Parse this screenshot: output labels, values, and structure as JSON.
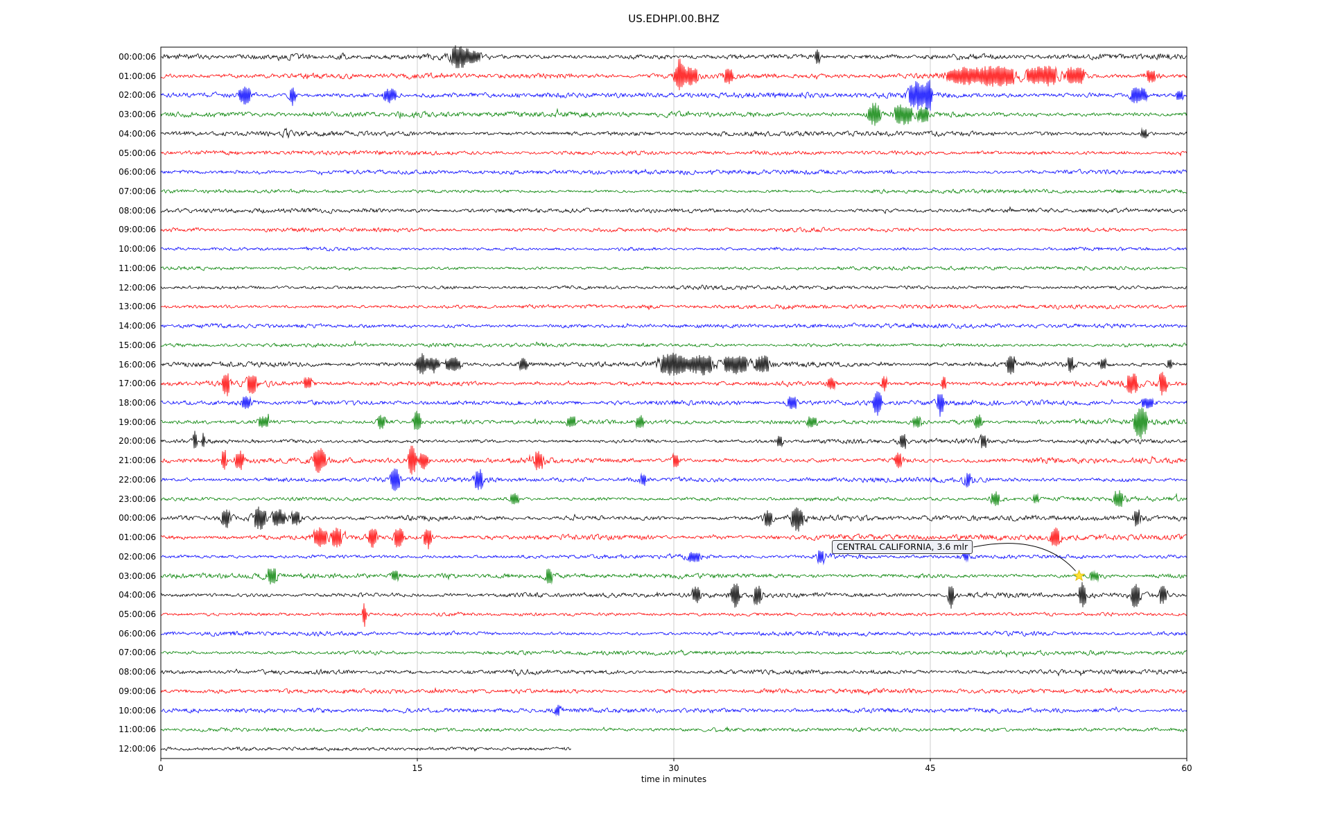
{
  "chart_data": {
    "type": "line",
    "subtype": "seismogram-dayplot",
    "title": "US.EDHPI.00.BHZ",
    "xlabel": "time in minutes",
    "x_range": [
      0,
      60
    ],
    "x_ticks": [
      0,
      15,
      30,
      45,
      60
    ],
    "grid_x_minutes": [
      15,
      30,
      45
    ],
    "colors": {
      "grid": "#c8c8c8",
      "axis": "#000000",
      "marker_fill": "#ffe135",
      "marker_stroke": "#d8b500",
      "annotation_bg": "#eef0f6"
    },
    "annotation": {
      "text": "CENTRAL CALIFORNIA, 3.6 mlr",
      "points_to_row": 27,
      "x_minutes": 53.7
    },
    "marker": {
      "shape": "star",
      "color": "#ffe135",
      "row": 27,
      "x_minutes": 53.7
    },
    "rows": [
      {
        "label": "00:00:06",
        "color": "#000000",
        "amp": 2.0,
        "events": [
          [
            10.6,
            1.2,
            0.4
          ],
          [
            17.4,
            2.6,
            0.45
          ],
          [
            18.3,
            1.6,
            0.7
          ],
          [
            38.4,
            2.2,
            0.15
          ]
        ]
      },
      {
        "label": "01:00:06",
        "color": "#ff0000",
        "amp": 1.9,
        "events": [
          [
            30.3,
            5.5,
            0.25
          ],
          [
            31.0,
            2.2,
            0.5
          ],
          [
            33.2,
            2.0,
            0.3
          ],
          [
            46.6,
            1.8,
            1.0
          ],
          [
            48.8,
            1.8,
            1.4
          ],
          [
            51.6,
            1.7,
            1.2
          ],
          [
            53.6,
            1.6,
            0.7
          ],
          [
            57.9,
            1.5,
            0.5
          ]
        ]
      },
      {
        "label": "02:00:06",
        "color": "#0000ff",
        "amp": 1.9,
        "events": [
          [
            4.9,
            2.6,
            0.4
          ],
          [
            7.7,
            3.5,
            0.18
          ],
          [
            13.4,
            2.6,
            0.4
          ],
          [
            44.2,
            3.2,
            0.5
          ],
          [
            44.9,
            4.5,
            0.18
          ],
          [
            57.2,
            2.2,
            0.6
          ],
          [
            59.6,
            1.8,
            0.3
          ]
        ]
      },
      {
        "label": "03:00:06",
        "color": "#008000",
        "amp": 1.9,
        "events": [
          [
            41.7,
            4.0,
            0.35
          ],
          [
            43.4,
            2.4,
            0.6
          ],
          [
            44.6,
            1.8,
            0.4
          ]
        ]
      },
      {
        "label": "04:00:06",
        "color": "#000000",
        "amp": 1.6,
        "events": [
          [
            7.4,
            1.2,
            0.3
          ],
          [
            57.5,
            1.5,
            0.4
          ]
        ]
      },
      {
        "label": "05:00:06",
        "color": "#ff0000",
        "amp": 1.5,
        "events": []
      },
      {
        "label": "06:00:06",
        "color": "#0000ff",
        "amp": 1.5,
        "events": []
      },
      {
        "label": "07:00:06",
        "color": "#008000",
        "amp": 1.4,
        "events": []
      },
      {
        "label": "08:00:06",
        "color": "#000000",
        "amp": 1.5,
        "events": []
      },
      {
        "label": "09:00:06",
        "color": "#ff0000",
        "amp": 1.5,
        "events": []
      },
      {
        "label": "10:00:06",
        "color": "#0000ff",
        "amp": 1.4,
        "events": []
      },
      {
        "label": "11:00:06",
        "color": "#008000",
        "amp": 1.3,
        "events": []
      },
      {
        "label": "12:00:06",
        "color": "#000000",
        "amp": 1.5,
        "events": []
      },
      {
        "label": "13:00:06",
        "color": "#ff0000",
        "amp": 1.5,
        "events": [
          [
            25.0,
            1.0,
            0.6
          ]
        ]
      },
      {
        "label": "14:00:06",
        "color": "#0000ff",
        "amp": 1.5,
        "events": []
      },
      {
        "label": "15:00:06",
        "color": "#008000",
        "amp": 1.3,
        "events": []
      },
      {
        "label": "16:00:06",
        "color": "#000000",
        "amp": 1.8,
        "events": [
          [
            15.2,
            3.5,
            0.25
          ],
          [
            15.9,
            3.0,
            0.35
          ],
          [
            17.1,
            2.6,
            0.5
          ],
          [
            21.2,
            1.6,
            0.4
          ],
          [
            29.9,
            2.0,
            0.9
          ],
          [
            31.6,
            2.2,
            0.7
          ],
          [
            33.6,
            2.0,
            0.9
          ],
          [
            35.2,
            1.8,
            0.5
          ],
          [
            49.7,
            2.6,
            0.25
          ],
          [
            53.2,
            1.6,
            0.3
          ],
          [
            55.1,
            1.6,
            0.3
          ],
          [
            59.0,
            1.5,
            0.3
          ]
        ]
      },
      {
        "label": "17:00:06",
        "color": "#ff0000",
        "amp": 1.8,
        "events": [
          [
            3.8,
            2.6,
            0.22
          ],
          [
            5.3,
            2.2,
            0.35
          ],
          [
            8.6,
            2.4,
            0.28
          ],
          [
            39.2,
            2.2,
            0.3
          ],
          [
            42.3,
            2.6,
            0.18
          ],
          [
            45.8,
            3.2,
            0.13
          ],
          [
            56.8,
            2.6,
            0.35
          ],
          [
            58.6,
            2.2,
            0.28
          ]
        ]
      },
      {
        "label": "18:00:06",
        "color": "#0000ff",
        "amp": 1.7,
        "events": [
          [
            5.0,
            1.8,
            0.4
          ],
          [
            36.9,
            2.2,
            0.35
          ],
          [
            41.9,
            3.6,
            0.22
          ],
          [
            45.6,
            3.0,
            0.18
          ],
          [
            57.7,
            2.0,
            0.45
          ]
        ]
      },
      {
        "label": "19:00:06",
        "color": "#008000",
        "amp": 1.8,
        "events": [
          [
            6.0,
            2.0,
            0.45
          ],
          [
            12.9,
            2.4,
            0.28
          ],
          [
            15.0,
            4.0,
            0.22
          ],
          [
            24.0,
            2.0,
            0.35
          ],
          [
            28.0,
            2.2,
            0.28
          ],
          [
            38.1,
            2.0,
            0.35
          ],
          [
            44.2,
            1.8,
            0.35
          ],
          [
            47.8,
            2.2,
            0.28
          ],
          [
            57.3,
            4.0,
            0.35
          ]
        ]
      },
      {
        "label": "20:00:06",
        "color": "#000000",
        "amp": 1.6,
        "events": [
          [
            2.0,
            3.2,
            0.13
          ],
          [
            2.5,
            2.6,
            0.1
          ],
          [
            36.2,
            2.5,
            0.18
          ],
          [
            43.4,
            2.2,
            0.22
          ],
          [
            48.1,
            1.6,
            0.3
          ]
        ]
      },
      {
        "label": "21:00:06",
        "color": "#ff0000",
        "amp": 1.8,
        "events": [
          [
            3.7,
            4.5,
            0.13
          ],
          [
            4.6,
            2.6,
            0.28
          ],
          [
            9.3,
            2.6,
            0.4
          ],
          [
            14.7,
            4.0,
            0.22
          ],
          [
            15.4,
            2.2,
            0.3
          ],
          [
            22.1,
            1.6,
            0.4
          ],
          [
            30.1,
            1.6,
            0.3
          ],
          [
            43.1,
            1.6,
            0.3
          ]
        ]
      },
      {
        "label": "22:00:06",
        "color": "#0000ff",
        "amp": 1.7,
        "events": [
          [
            13.7,
            2.6,
            0.28
          ],
          [
            18.6,
            2.2,
            0.28
          ],
          [
            28.2,
            1.4,
            0.3
          ],
          [
            47.2,
            1.4,
            0.3
          ]
        ]
      },
      {
        "label": "23:00:06",
        "color": "#008000",
        "amp": 1.6,
        "events": [
          [
            20.7,
            2.4,
            0.28
          ],
          [
            48.8,
            2.0,
            0.35
          ],
          [
            51.2,
            1.6,
            0.3
          ],
          [
            56.0,
            2.0,
            0.35
          ]
        ]
      },
      {
        "label": "00:00:06",
        "color": "#000000",
        "amp": 1.8,
        "events": [
          [
            3.8,
            2.4,
            0.28
          ],
          [
            5.8,
            2.2,
            0.4
          ],
          [
            6.9,
            2.4,
            0.45
          ],
          [
            7.9,
            2.0,
            0.3
          ],
          [
            35.5,
            2.2,
            0.28
          ],
          [
            37.2,
            3.2,
            0.35
          ],
          [
            57.1,
            1.5,
            0.3
          ]
        ]
      },
      {
        "label": "01:00:06",
        "color": "#ff0000",
        "amp": 1.8,
        "events": [
          [
            9.3,
            2.4,
            0.45
          ],
          [
            10.3,
            2.2,
            0.35
          ],
          [
            12.4,
            2.6,
            0.28
          ],
          [
            13.9,
            3.6,
            0.25
          ],
          [
            15.6,
            2.2,
            0.28
          ],
          [
            52.3,
            2.2,
            0.35
          ]
        ]
      },
      {
        "label": "02:00:06",
        "color": "#0000ff",
        "amp": 1.7,
        "events": [
          [
            31.2,
            1.5,
            0.7
          ],
          [
            38.6,
            1.4,
            0.5
          ],
          [
            47.1,
            1.3,
            0.5
          ]
        ]
      },
      {
        "label": "03:00:06",
        "color": "#008000",
        "amp": 1.7,
        "events": [
          [
            6.5,
            1.7,
            0.4
          ],
          [
            13.7,
            1.7,
            0.3
          ],
          [
            22.7,
            1.9,
            0.28
          ],
          [
            54.6,
            1.4,
            0.6
          ]
        ]
      },
      {
        "label": "04:00:06",
        "color": "#000000",
        "amp": 1.7,
        "events": [
          [
            31.3,
            2.2,
            0.28
          ],
          [
            33.6,
            2.5,
            0.28
          ],
          [
            34.9,
            2.2,
            0.28
          ],
          [
            46.2,
            4.5,
            0.16
          ],
          [
            53.9,
            3.0,
            0.22
          ],
          [
            57.0,
            2.8,
            0.28
          ],
          [
            58.6,
            1.8,
            0.3
          ]
        ]
      },
      {
        "label": "05:00:06",
        "color": "#ff0000",
        "amp": 1.5,
        "events": [
          [
            11.9,
            7.0,
            0.1
          ]
        ]
      },
      {
        "label": "06:00:06",
        "color": "#0000ff",
        "amp": 1.5,
        "events": []
      },
      {
        "label": "07:00:06",
        "color": "#008000",
        "amp": 1.4,
        "events": []
      },
      {
        "label": "08:00:06",
        "color": "#000000",
        "amp": 1.6,
        "events": []
      },
      {
        "label": "09:00:06",
        "color": "#ff0000",
        "amp": 1.5,
        "events": []
      },
      {
        "label": "10:00:06",
        "color": "#0000ff",
        "amp": 1.5,
        "events": [
          [
            23.2,
            1.3,
            0.4
          ]
        ]
      },
      {
        "label": "11:00:06",
        "color": "#008000",
        "amp": 1.2,
        "events": []
      },
      {
        "label": "12:00:06",
        "color": "#000000",
        "amp": 1.7,
        "end": 24,
        "events": []
      }
    ]
  }
}
